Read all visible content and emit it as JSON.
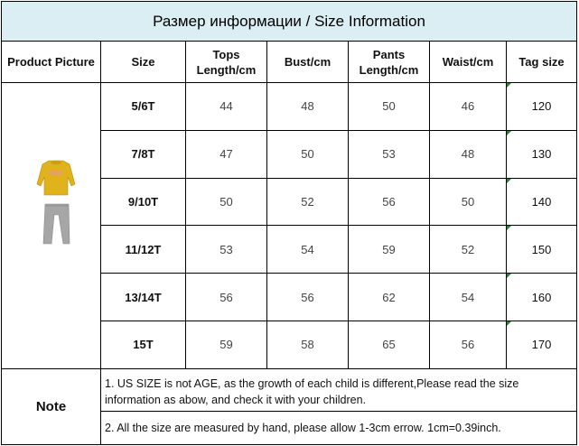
{
  "title": "Размер информации / Size Information",
  "headers": {
    "product_picture": "Product Picture",
    "size": "Size",
    "tops_length": "Tops Length/cm",
    "bust": "Bust/cm",
    "pants_length": "Pants Length/cm",
    "waist": "Waist/cm",
    "tag_size": "Tag size"
  },
  "rows": [
    {
      "size": "5/6T",
      "tops": "44",
      "bust": "48",
      "pants": "50",
      "waist": "46",
      "tag": "120"
    },
    {
      "size": "7/8T",
      "tops": "47",
      "bust": "50",
      "pants": "53",
      "waist": "48",
      "tag": "130"
    },
    {
      "size": "9/10T",
      "tops": "50",
      "bust": "52",
      "pants": "56",
      "waist": "50",
      "tag": "140"
    },
    {
      "size": "11/12T",
      "tops": "53",
      "bust": "54",
      "pants": "59",
      "waist": "52",
      "tag": "150"
    },
    {
      "size": "13/14T",
      "tops": "56",
      "bust": "56",
      "pants": "62",
      "waist": "54",
      "tag": "160"
    },
    {
      "size": "15T",
      "tops": "59",
      "bust": "58",
      "pants": "65",
      "waist": "56",
      "tag": "170"
    }
  ],
  "note": {
    "label": "Note",
    "line1": "1. US SIZE is not AGE, as the growth of each child is different,Please read the size information as abow,    and check it with your children.",
    "line2": "2. All the size are measured by hand, please allow 1-3cm errow. 1cm=0.39inch."
  },
  "colors": {
    "title_background": "#daeef3",
    "sweatshirt": "#e0b21c",
    "pants": "#a6a6a6",
    "corner_marker": "#1a8a2e"
  }
}
